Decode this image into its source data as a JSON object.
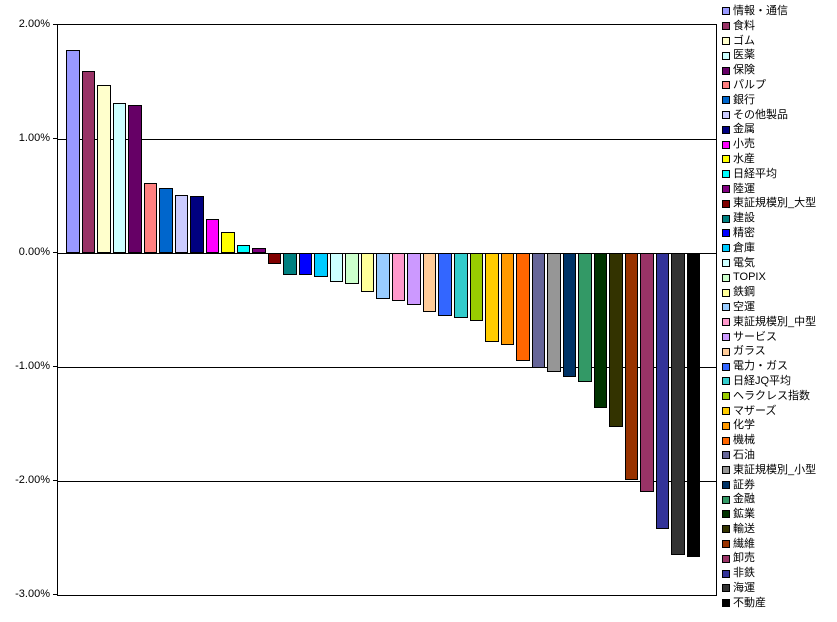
{
  "chart_data": {
    "type": "bar",
    "title": "",
    "xlabel": "",
    "ylabel": "",
    "ylim": [
      -3,
      2
    ],
    "grid": true,
    "legend_position": "right",
    "background_color": "#FFFFFF",
    "axis_color": "#000000",
    "yticks": [
      {
        "value": 2,
        "label": "2.00%"
      },
      {
        "value": 1,
        "label": "1.00%"
      },
      {
        "value": 0,
        "label": "0.00%"
      },
      {
        "value": -1,
        "label": "-1.00%"
      },
      {
        "value": -2,
        "label": "-2.00%"
      },
      {
        "value": -3,
        "label": "-3.00%"
      }
    ],
    "gridlines": [
      1,
      0,
      -1,
      -2
    ],
    "categories": [
      "情報・通信",
      "食料",
      "ゴム",
      "医薬",
      "保険",
      "パルプ",
      "銀行",
      "その他製品",
      "金属",
      "小売",
      "水産",
      "日経平均",
      "陸運",
      "東証規模別_大型",
      "建設",
      "精密",
      "倉庫",
      "電気",
      "TOPIX",
      "鉄鋼",
      "空運",
      "東証規模別_中型",
      "サービス",
      "ガラス",
      "電力・ガス",
      "日経JQ平均",
      "ヘラクレス指数",
      "マザーズ",
      "化学",
      "機械",
      "石油",
      "東証規模別_小型",
      "証券",
      "金融",
      "鉱業",
      "輸送",
      "繊維",
      "卸売",
      "非鉄",
      "海運",
      "不動産"
    ],
    "values": [
      1.78,
      1.6,
      1.47,
      1.32,
      1.3,
      0.61,
      0.57,
      0.51,
      0.5,
      0.3,
      0.18,
      0.07,
      0.04,
      -0.1,
      -0.19,
      -0.19,
      -0.21,
      -0.25,
      -0.27,
      -0.34,
      -0.4,
      -0.42,
      -0.46,
      -0.52,
      -0.55,
      -0.57,
      -0.6,
      -0.78,
      -0.81,
      -0.95,
      -1.01,
      -1.04,
      -1.09,
      -1.13,
      -1.36,
      -1.53,
      -1.99,
      -2.1,
      -2.42,
      -2.65,
      -2.67
    ],
    "colors": [
      "#9999FF",
      "#993366",
      "#FFFFCC",
      "#CCFFFF",
      "#660066",
      "#FF8080",
      "#0066CC",
      "#CCCCFF",
      "#000080",
      "#FF00FF",
      "#FFFF00",
      "#00FFFF",
      "#800080",
      "#800000",
      "#008080",
      "#0000FF",
      "#00CCFF",
      "#CCFFFF",
      "#CCFFCC",
      "#FFFF99",
      "#99CCFF",
      "#FF99CC",
      "#CC99FF",
      "#FFCC99",
      "#3366FF",
      "#33CCCC",
      "#99CC00",
      "#FFCC00",
      "#FF9900",
      "#FF6600",
      "#666699",
      "#969696",
      "#003366",
      "#339966",
      "#003300",
      "#333300",
      "#993300",
      "#993366",
      "#333399",
      "#333333",
      "#000000"
    ],
    "unit": "%"
  }
}
